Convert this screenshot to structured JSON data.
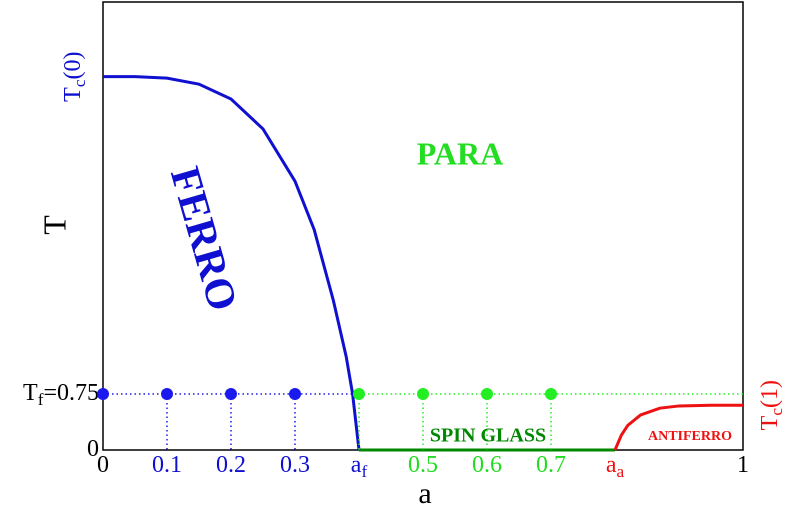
{
  "chart_data": {
    "type": "line",
    "xlabel": "a",
    "ylabel": "T",
    "xlim": [
      0,
      1
    ],
    "ylim": [
      0,
      6
    ],
    "y2lim": [
      0,
      6
    ],
    "xticks": [
      {
        "value": 0,
        "label": "0",
        "color": "#000000"
      },
      {
        "value": 0.1,
        "label": "0.1",
        "color": "#1010d0"
      },
      {
        "value": 0.2,
        "label": "0.2",
        "color": "#1010d0"
      },
      {
        "value": 0.3,
        "label": "0.3",
        "color": "#1010d0"
      },
      {
        "value": 0.4,
        "label": "a",
        "sub": "f",
        "color": "#1010d0"
      },
      {
        "value": 0.5,
        "label": "0.5",
        "color": "#22dd22"
      },
      {
        "value": 0.6,
        "label": "0.6",
        "color": "#22dd22"
      },
      {
        "value": 0.7,
        "label": "0.7",
        "color": "#22dd22"
      },
      {
        "value": 0.8,
        "label": "a",
        "sub": "a",
        "color": "#ee1111"
      },
      {
        "value": 1,
        "label": "1",
        "color": "#000000"
      }
    ],
    "yticks": [
      {
        "value": 0,
        "label": "0",
        "color": "#000000"
      },
      {
        "value": 0.75,
        "label": "T",
        "sub": "f",
        "suffix": "=0.75",
        "color": "#000000"
      },
      {
        "value": 5,
        "label": "T",
        "sub": "c",
        "suffix": "(0)",
        "color": "#1010d0",
        "rotate": true
      }
    ],
    "y2ticks": [
      {
        "value": 0.6,
        "label": "T",
        "sub": "c",
        "suffix": "(1)",
        "color": "#ee1111",
        "rotate": true
      }
    ],
    "series": [
      {
        "color": "#1010d0",
        "x": [
          0,
          0.05,
          0.1,
          0.15,
          0.2,
          0.25,
          0.3,
          0.33,
          0.36,
          0.38,
          0.39,
          0.4
        ],
        "values": [
          5,
          5,
          4.98,
          4.9,
          4.7,
          4.3,
          3.6,
          2.95,
          2.0,
          1.25,
          0.75,
          0
        ]
      },
      {
        "color": "#008800",
        "x": [
          0.4,
          0.8
        ],
        "values": [
          0,
          0
        ]
      },
      {
        "color": "#ee1111",
        "x": [
          0.8,
          0.81,
          0.82,
          0.84,
          0.87,
          0.9,
          0.95,
          1
        ],
        "values": [
          0,
          0.2,
          0.33,
          0.47,
          0.56,
          0.59,
          0.6,
          0.6
        ]
      },
      {
        "color": "#1a1aee",
        "marker": true,
        "x": [
          0,
          0.1,
          0.2,
          0.3
        ],
        "values": [
          0.75,
          0.75,
          0.75,
          0.75
        ]
      },
      {
        "color": "#22ee22",
        "marker": true,
        "x": [
          0.4,
          0.5,
          0.6,
          0.7
        ],
        "values": [
          0.75,
          0.75,
          0.75,
          0.75
        ]
      }
    ],
    "annotations": [
      {
        "text": "PARA",
        "color": "#22dd22"
      },
      {
        "text": "FERRO",
        "color": "#1010d0"
      },
      {
        "text": "SPIN GLASS",
        "color": "#008800"
      },
      {
        "text": "ANTIFERRO",
        "color": "#ee1111"
      }
    ]
  }
}
